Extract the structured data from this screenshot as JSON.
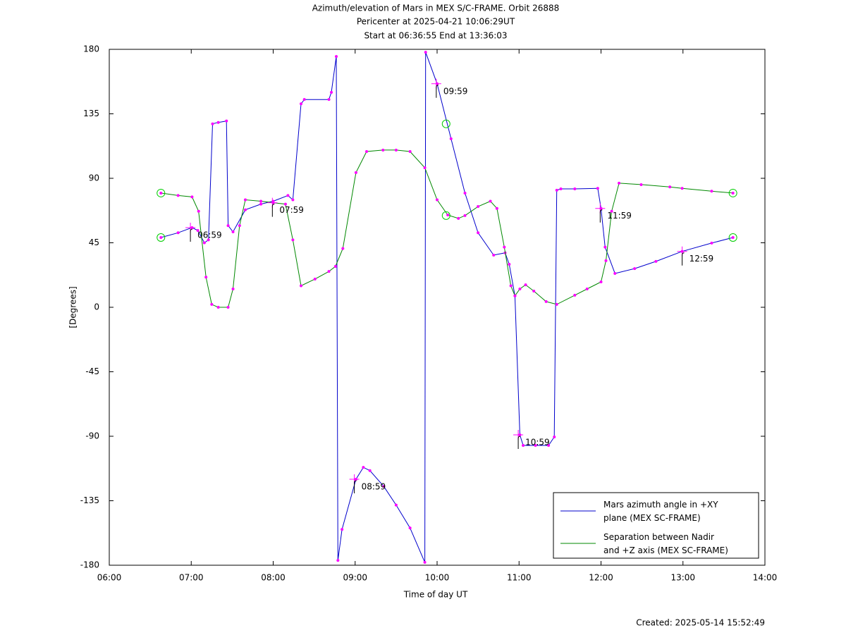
{
  "chart_data": {
    "type": "line",
    "title": "Azimuth/elevation of Mars in MEX S/C-FRAME.  Orbit 26888",
    "subtitle": [
      "Pericenter at 2025-04-21 10:06:29UT",
      "Start at 06:36:55 End at 13:36:03"
    ],
    "x_label": "Time of day UT",
    "y_label": "[Degrees]",
    "footer": "Created: 2025-05-14 15:52:49",
    "xlim": [
      6,
      14
    ],
    "xticks": [
      {
        "value": 6,
        "label": "06:00"
      },
      {
        "value": 7,
        "label": "07:00"
      },
      {
        "value": 8,
        "label": "08:00"
      },
      {
        "value": 9,
        "label": "09:00"
      },
      {
        "value": 10,
        "label": "10:00"
      },
      {
        "value": 11,
        "label": "11:00"
      },
      {
        "value": 12,
        "label": "12:00"
      },
      {
        "value": 13,
        "label": "13:00"
      },
      {
        "value": 14,
        "label": "14:00"
      }
    ],
    "ylim": [
      -180,
      180
    ],
    "yticks": [
      180,
      135,
      90,
      45,
      0,
      -45,
      -90,
      -135,
      -180
    ],
    "legend": "lower right",
    "marker_color": "#ff00ff",
    "circle_color": "#00cc00",
    "series": [
      {
        "name": "Mars azimuth angle in +XY plane (MEX SC-FRAME)",
        "color": "#0000cc",
        "x": [
          6.63,
          6.84,
          7.01,
          7.08,
          7.16,
          7.21,
          7.26,
          7.33,
          7.43,
          7.45,
          7.51,
          7.66,
          7.85,
          8.0,
          8.18,
          8.24,
          8.34,
          8.38,
          8.68,
          8.71,
          8.77,
          8.79,
          8.84,
          9.01,
          9.1,
          9.18,
          9.35,
          9.5,
          9.67,
          9.85,
          9.86,
          10.0,
          10.17,
          10.34,
          10.5,
          10.69,
          10.83,
          10.88,
          10.95,
          11.01,
          11.05,
          11.2,
          11.36,
          11.43,
          11.46,
          11.51,
          11.68,
          11.96,
          12.0,
          12.05,
          12.17,
          12.41,
          12.67,
          12.99,
          13.35,
          13.61
        ],
        "values": [
          48.7,
          52,
          55.6,
          53.6,
          45,
          47,
          128,
          129,
          130,
          57,
          52.6,
          68,
          72,
          74,
          78,
          75,
          142,
          145,
          145,
          150,
          175,
          -176.6,
          -155,
          -120,
          -111.7,
          -114,
          -125,
          -138,
          -154,
          -178,
          178,
          156,
          117.6,
          79.7,
          52,
          36.4,
          38,
          30,
          8,
          -89,
          -96.4,
          -96.4,
          -96.4,
          -90.5,
          81.7,
          82.6,
          82.6,
          83,
          69,
          42,
          23.6,
          27,
          32,
          39,
          44.8,
          48.7
        ]
      },
      {
        "name": "Separation between Nadir and +Z axis (MEX SC-FRAME)",
        "color": "#008800",
        "x": [
          6.63,
          6.84,
          7.01,
          7.09,
          7.18,
          7.25,
          7.33,
          7.45,
          7.51,
          7.59,
          7.66,
          7.85,
          8.0,
          8.15,
          8.24,
          8.34,
          8.51,
          8.68,
          8.76,
          8.85,
          9.01,
          9.14,
          9.34,
          9.5,
          9.67,
          9.85,
          10.0,
          10.13,
          10.26,
          10.34,
          10.5,
          10.65,
          10.73,
          10.82,
          10.9,
          10.95,
          11.01,
          11.08,
          11.18,
          11.33,
          11.46,
          11.68,
          11.83,
          12.0,
          12.06,
          12.13,
          12.22,
          12.49,
          12.84,
          12.99,
          13.35,
          13.61
        ],
        "values": [
          79.7,
          78,
          77,
          67,
          21,
          2,
          0,
          0,
          12.8,
          57,
          75,
          74,
          73,
          72,
          47,
          15,
          19.7,
          25,
          28.5,
          41,
          94,
          108.7,
          109.7,
          109.7,
          108.7,
          97.4,
          75,
          64.4,
          62,
          64,
          70.3,
          74,
          69,
          42,
          15,
          8,
          12.8,
          15.7,
          11.3,
          4,
          2,
          8.4,
          12.8,
          17.7,
          32.5,
          67,
          86.6,
          85.6,
          84,
          83,
          81,
          79.7
        ]
      }
    ],
    "circles": [
      {
        "x": 6.63,
        "y": 48.7
      },
      {
        "x": 6.63,
        "y": 79.7
      },
      {
        "x": 10.11,
        "y": 128
      },
      {
        "x": 10.11,
        "y": 64
      },
      {
        "x": 13.61,
        "y": 48.7
      },
      {
        "x": 13.61,
        "y": 79.7
      }
    ],
    "annotations": [
      {
        "text": "06:59",
        "x": 6.99,
        "y": 55.6
      },
      {
        "text": "07:59",
        "x": 7.99,
        "y": 73
      },
      {
        "text": "08:59",
        "x": 8.99,
        "y": -120
      },
      {
        "text": "09:59",
        "x": 9.99,
        "y": 156
      },
      {
        "text": "10:59",
        "x": 10.99,
        "y": -89
      },
      {
        "text": "11:59",
        "x": 11.99,
        "y": 69
      },
      {
        "text": "12:59",
        "x": 12.99,
        "y": 39
      }
    ]
  }
}
